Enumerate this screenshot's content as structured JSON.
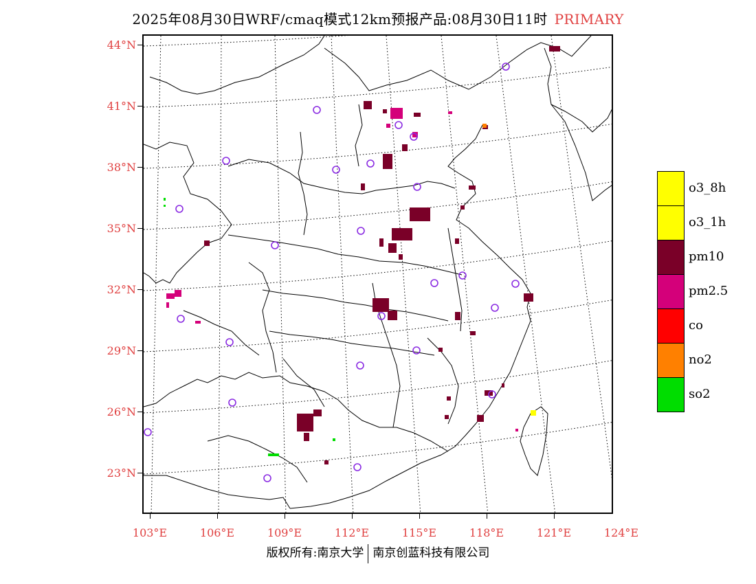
{
  "title": {
    "main": "2025年08月30日WRF/cmaq模式12km预报产品:08月30日11时",
    "tag": "PRIMARY"
  },
  "axes": {
    "lat_labels": [
      "44°N",
      "41°N",
      "38°N",
      "35°N",
      "32°N",
      "29°N",
      "26°N",
      "23°N"
    ],
    "lon_labels": [
      "103°E",
      "106°E",
      "109°E",
      "112°E",
      "115°E",
      "118°E",
      "121°E",
      "124°E"
    ]
  },
  "colors": {
    "label_red": "#e04040",
    "pm10": "#7a0028",
    "pm25": "#d4007a",
    "o3": "#ffff00",
    "co": "#ff0000",
    "no2": "#ff8000",
    "so2": "#00dd00",
    "station": "#8a2be2"
  },
  "legend": [
    {
      "label": "o3_8h",
      "color": "#ffff00"
    },
    {
      "label": "o3_1h",
      "color": "#ffff00"
    },
    {
      "label": "pm10",
      "color": "#7a0028"
    },
    {
      "label": "pm2.5",
      "color": "#d4007a"
    },
    {
      "label": "co",
      "color": "#ff0000"
    },
    {
      "label": "no2",
      "color": "#ff8000"
    },
    {
      "label": "so2",
      "color": "#00dd00"
    }
  ],
  "footer": {
    "left": "版权所有:南京大学",
    "right": "南京创蓝科技有限公司"
  }
}
